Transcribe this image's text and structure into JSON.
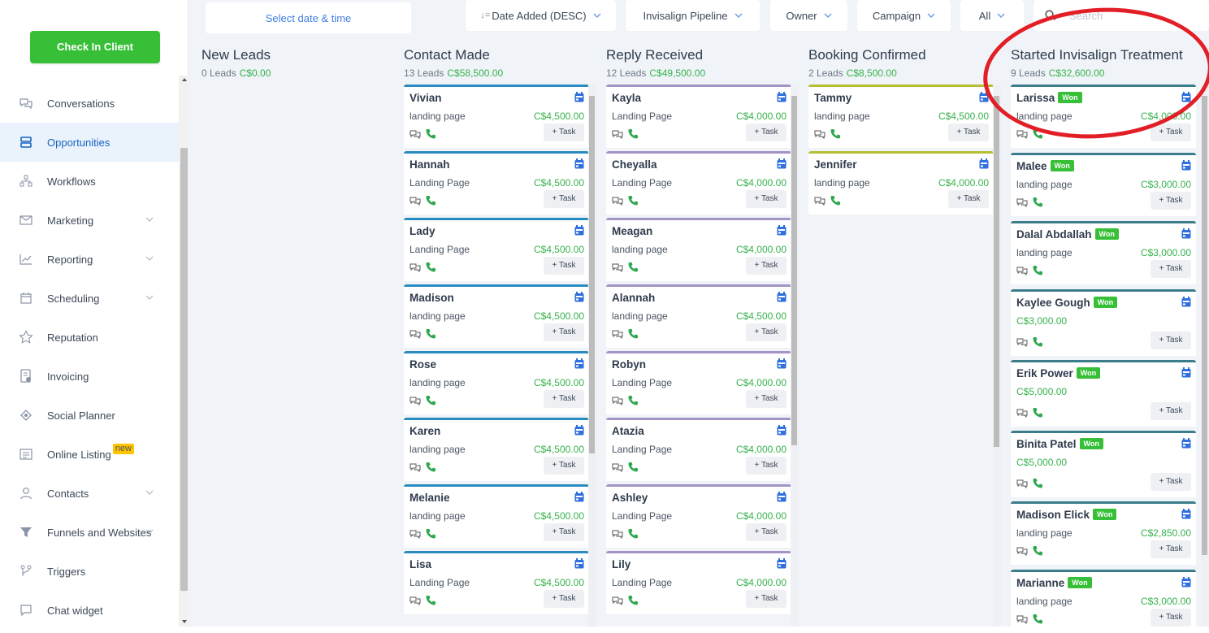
{
  "sidebar": {
    "checkin_label": "Check In Client",
    "items": [
      {
        "label": "Conversations",
        "icon": "chat-bubbles-icon",
        "active": false,
        "chevron": false
      },
      {
        "label": "Opportunities",
        "icon": "opportunities-icon",
        "active": true,
        "chevron": false
      },
      {
        "label": "Workflows",
        "icon": "workflow-icon",
        "active": false,
        "chevron": false
      },
      {
        "label": "Marketing",
        "icon": "mail-icon",
        "active": false,
        "chevron": true
      },
      {
        "label": "Reporting",
        "icon": "chart-icon",
        "active": false,
        "chevron": true
      },
      {
        "label": "Scheduling",
        "icon": "calendar-icon",
        "active": false,
        "chevron": true
      },
      {
        "label": "Reputation",
        "icon": "star-icon",
        "active": false,
        "chevron": false
      },
      {
        "label": "Invoicing",
        "icon": "invoice-icon",
        "active": false,
        "chevron": false
      },
      {
        "label": "Social Planner",
        "icon": "social-icon",
        "active": false,
        "chevron": false
      },
      {
        "label": "Online Listing",
        "icon": "listing-icon",
        "active": false,
        "chevron": false,
        "badge": "new"
      },
      {
        "label": "Contacts",
        "icon": "person-icon",
        "active": false,
        "chevron": true
      },
      {
        "label": "Funnels and Websites",
        "icon": "funnel-icon",
        "active": false,
        "chevron": true
      },
      {
        "label": "Triggers",
        "icon": "trigger-icon",
        "active": false,
        "chevron": false
      },
      {
        "label": "Chat widget",
        "icon": "chat-widget-icon",
        "active": false,
        "chevron": false
      }
    ]
  },
  "topbar": {
    "datetime_label": "Select date & time",
    "sort_label": "Date Added (DESC)",
    "pipeline_label": "Invisalign Pipeline",
    "owner_label": "Owner",
    "campaign_label": "Campaign",
    "status_label": "All",
    "search_placeholder": "Search"
  },
  "columns": [
    {
      "title": "New Leads",
      "count": "0 Leads",
      "amount": "C$0.00",
      "cards": []
    },
    {
      "title": "Contact Made",
      "count": "13 Leads",
      "amount": "C$58,500.00",
      "color": "blue",
      "cards": [
        {
          "name": "Vivian",
          "source": "landing page",
          "value": "C$4,500.00"
        },
        {
          "name": "Hannah",
          "source": "Landing Page",
          "value": "C$4,500.00"
        },
        {
          "name": "Lady",
          "source": "Landing Page",
          "value": "C$4,500.00"
        },
        {
          "name": "Madison",
          "source": "landing page",
          "value": "C$4,500.00"
        },
        {
          "name": "Rose",
          "source": "landing page",
          "value": "C$4,500.00"
        },
        {
          "name": "Karen",
          "source": "landing page",
          "value": "C$4,500.00"
        },
        {
          "name": "Melanie",
          "source": "landing page",
          "value": "C$4,500.00"
        },
        {
          "name": "Lisa",
          "source": "Landing Page",
          "value": "C$4,500.00"
        }
      ]
    },
    {
      "title": "Reply Received",
      "count": "12 Leads",
      "amount": "C$49,500.00",
      "color": "purple",
      "cards": [
        {
          "name": "Kayla",
          "source": "Landing Page",
          "value": "C$4,000.00"
        },
        {
          "name": "Cheyalla",
          "source": "Landing Page",
          "value": "C$4,000.00"
        },
        {
          "name": "Meagan",
          "source": "landing page",
          "value": "C$4,000.00"
        },
        {
          "name": "Alannah",
          "source": "landing page",
          "value": "C$4,500.00"
        },
        {
          "name": "Robyn",
          "source": "Landing Page",
          "value": "C$4,000.00"
        },
        {
          "name": "Atazia",
          "source": "Landing Page",
          "value": "C$4,000.00"
        },
        {
          "name": "Ashley",
          "source": "Landing Page",
          "value": "C$4,000.00"
        },
        {
          "name": "Lily",
          "source": "Landing Page",
          "value": "C$4,000.00"
        }
      ]
    },
    {
      "title": "Booking Confirmed",
      "count": "2 Leads",
      "amount": "C$8,500.00",
      "color": "olive",
      "cards": [
        {
          "name": "Tammy",
          "source": "landing page",
          "value": "C$4,500.00"
        },
        {
          "name": "Jennifer",
          "source": "landing page",
          "value": "C$4,000.00"
        }
      ]
    },
    {
      "title": "Started Invisalign Treatment",
      "count": "9 Leads",
      "amount": "C$32,600.00",
      "color": "teal",
      "cards": [
        {
          "name": "Larissa",
          "won": "Won",
          "source": "landing page",
          "value": "C$4,000.00"
        },
        {
          "name": "Malee",
          "won": "Won",
          "source": "landing page",
          "value": "C$3,000.00"
        },
        {
          "name": "Dalal Abdallah",
          "won": "Won",
          "source": "landing page",
          "value": "C$3,000.00"
        },
        {
          "name": "Kaylee Gough",
          "won": "Won",
          "source": "",
          "value": "C$3,000.00"
        },
        {
          "name": "Erik Power",
          "won": "Won",
          "source": "",
          "value": "C$5,000.00"
        },
        {
          "name": "Binita Patel",
          "won": "Won",
          "source": "",
          "value": "C$5,000.00"
        },
        {
          "name": "Madison Elick",
          "won": "Won",
          "source": "landing page",
          "value": "C$2,850.00"
        },
        {
          "name": "Marianne",
          "won": "Won",
          "source": "landing page",
          "value": "C$3,000.00"
        }
      ]
    }
  ],
  "task_label": "+ Task",
  "colors": {
    "accent": "#1565c0",
    "green": "#37c037",
    "money": "#37b24d",
    "highlight": "#e21e27"
  }
}
